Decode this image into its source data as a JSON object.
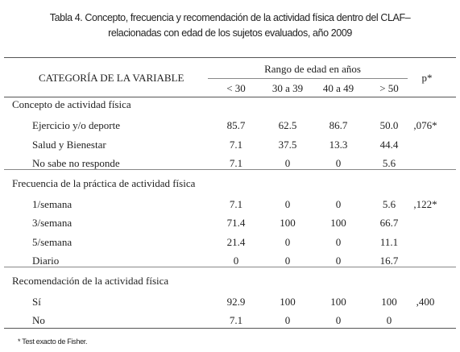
{
  "title": {
    "line1": "Tabla 4. Concepto, frecuencia y recomendación de la actividad física dentro del  CLAF–",
    "line2": "relacionadas con edad de los sujetos  evaluados, año 2009"
  },
  "table": {
    "header": {
      "category": "CATEGORÍA DE LA VARIABLE",
      "group": "Rango de edad en años",
      "columns": [
        "< 30",
        "30 a 39",
        "40 a 49",
        "> 50"
      ],
      "p": "p*"
    },
    "sections": [
      {
        "title": "Concepto de actividad física",
        "rows": [
          {
            "label": "Ejercicio y/o deporte",
            "values": [
              "85.7",
              "62.5",
              "86.7",
              "50.0"
            ],
            "p": ",076*"
          },
          {
            "label": "Salud y Bienestar",
            "values": [
              "7.1",
              "37.5",
              "13.3",
              "44.4"
            ]
          },
          {
            "label": "No sabe no responde",
            "values": [
              "7.1",
              "0",
              "0",
              "5.6"
            ]
          }
        ]
      },
      {
        "title": "Frecuencia de la práctica de actividad física",
        "rows": [
          {
            "label": "1/semana",
            "values": [
              "7.1",
              "0",
              "0",
              "5.6"
            ],
            "p": ",122*"
          },
          {
            "label": "3/semana",
            "values": [
              "71.4",
              "100",
              "100",
              "66.7"
            ]
          },
          {
            "label": "5/semana",
            "values": [
              "21.4",
              "0",
              "0",
              "11.1"
            ]
          },
          {
            "label": "Diario",
            "values": [
              "0",
              "0",
              "0",
              "16.7"
            ]
          }
        ]
      },
      {
        "title": "Recomendación de la actividad física",
        "rows": [
          {
            "label": "Sí",
            "values": [
              "92.9",
              "100",
              "100",
              "100"
            ],
            "p": ",400"
          },
          {
            "label": "No",
            "values": [
              "7.1",
              "0",
              "0",
              "0"
            ]
          }
        ]
      }
    ]
  },
  "footnote": "* Test exacto de Fisher."
}
